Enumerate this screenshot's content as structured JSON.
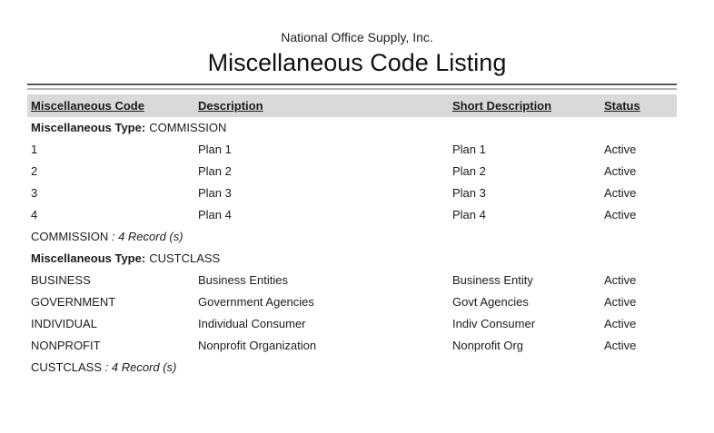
{
  "header": {
    "company": "National Office Supply, Inc.",
    "title": "Miscellaneous Code Listing"
  },
  "table": {
    "columns": [
      "Miscellaneous Code",
      "Description",
      "Short Description",
      "Status"
    ],
    "group_label": "Miscellaneous Type:",
    "groups": [
      {
        "type": "COMMISSION",
        "rows": [
          {
            "code": "1",
            "description": "Plan 1",
            "short": "Plan 1",
            "status": "Active"
          },
          {
            "code": "2",
            "description": "Plan 2",
            "short": "Plan 2",
            "status": "Active"
          },
          {
            "code": "3",
            "description": "Plan 3",
            "short": "Plan 3",
            "status": "Active"
          },
          {
            "code": "4",
            "description": "Plan 4",
            "short": "Plan 4",
            "status": "Active"
          }
        ],
        "footer_name": "COMMISSION ",
        "footer_count": ": 4 Record (s)"
      },
      {
        "type": "CUSTCLASS",
        "rows": [
          {
            "code": "BUSINESS",
            "description": "Business Entities",
            "short": "Business Entity",
            "status": "Active"
          },
          {
            "code": "GOVERNMENT",
            "description": "Government Agencies",
            "short": "Govt Agencies",
            "status": "Active"
          },
          {
            "code": "INDIVIDUAL",
            "description": "Individual Consumer",
            "short": "Indiv Consumer",
            "status": "Active"
          },
          {
            "code": "NONPROFIT",
            "description": "Nonprofit Organization",
            "short": "Nonprofit Org",
            "status": "Active"
          }
        ],
        "footer_name": "CUSTCLASS ",
        "footer_count": ": 4 Record (s)"
      }
    ]
  },
  "colors": {
    "header_band": "#d9d9d9",
    "rule_dark": "#595959",
    "rule_light": "#b3b3b3",
    "text": "#1c1c1c"
  }
}
